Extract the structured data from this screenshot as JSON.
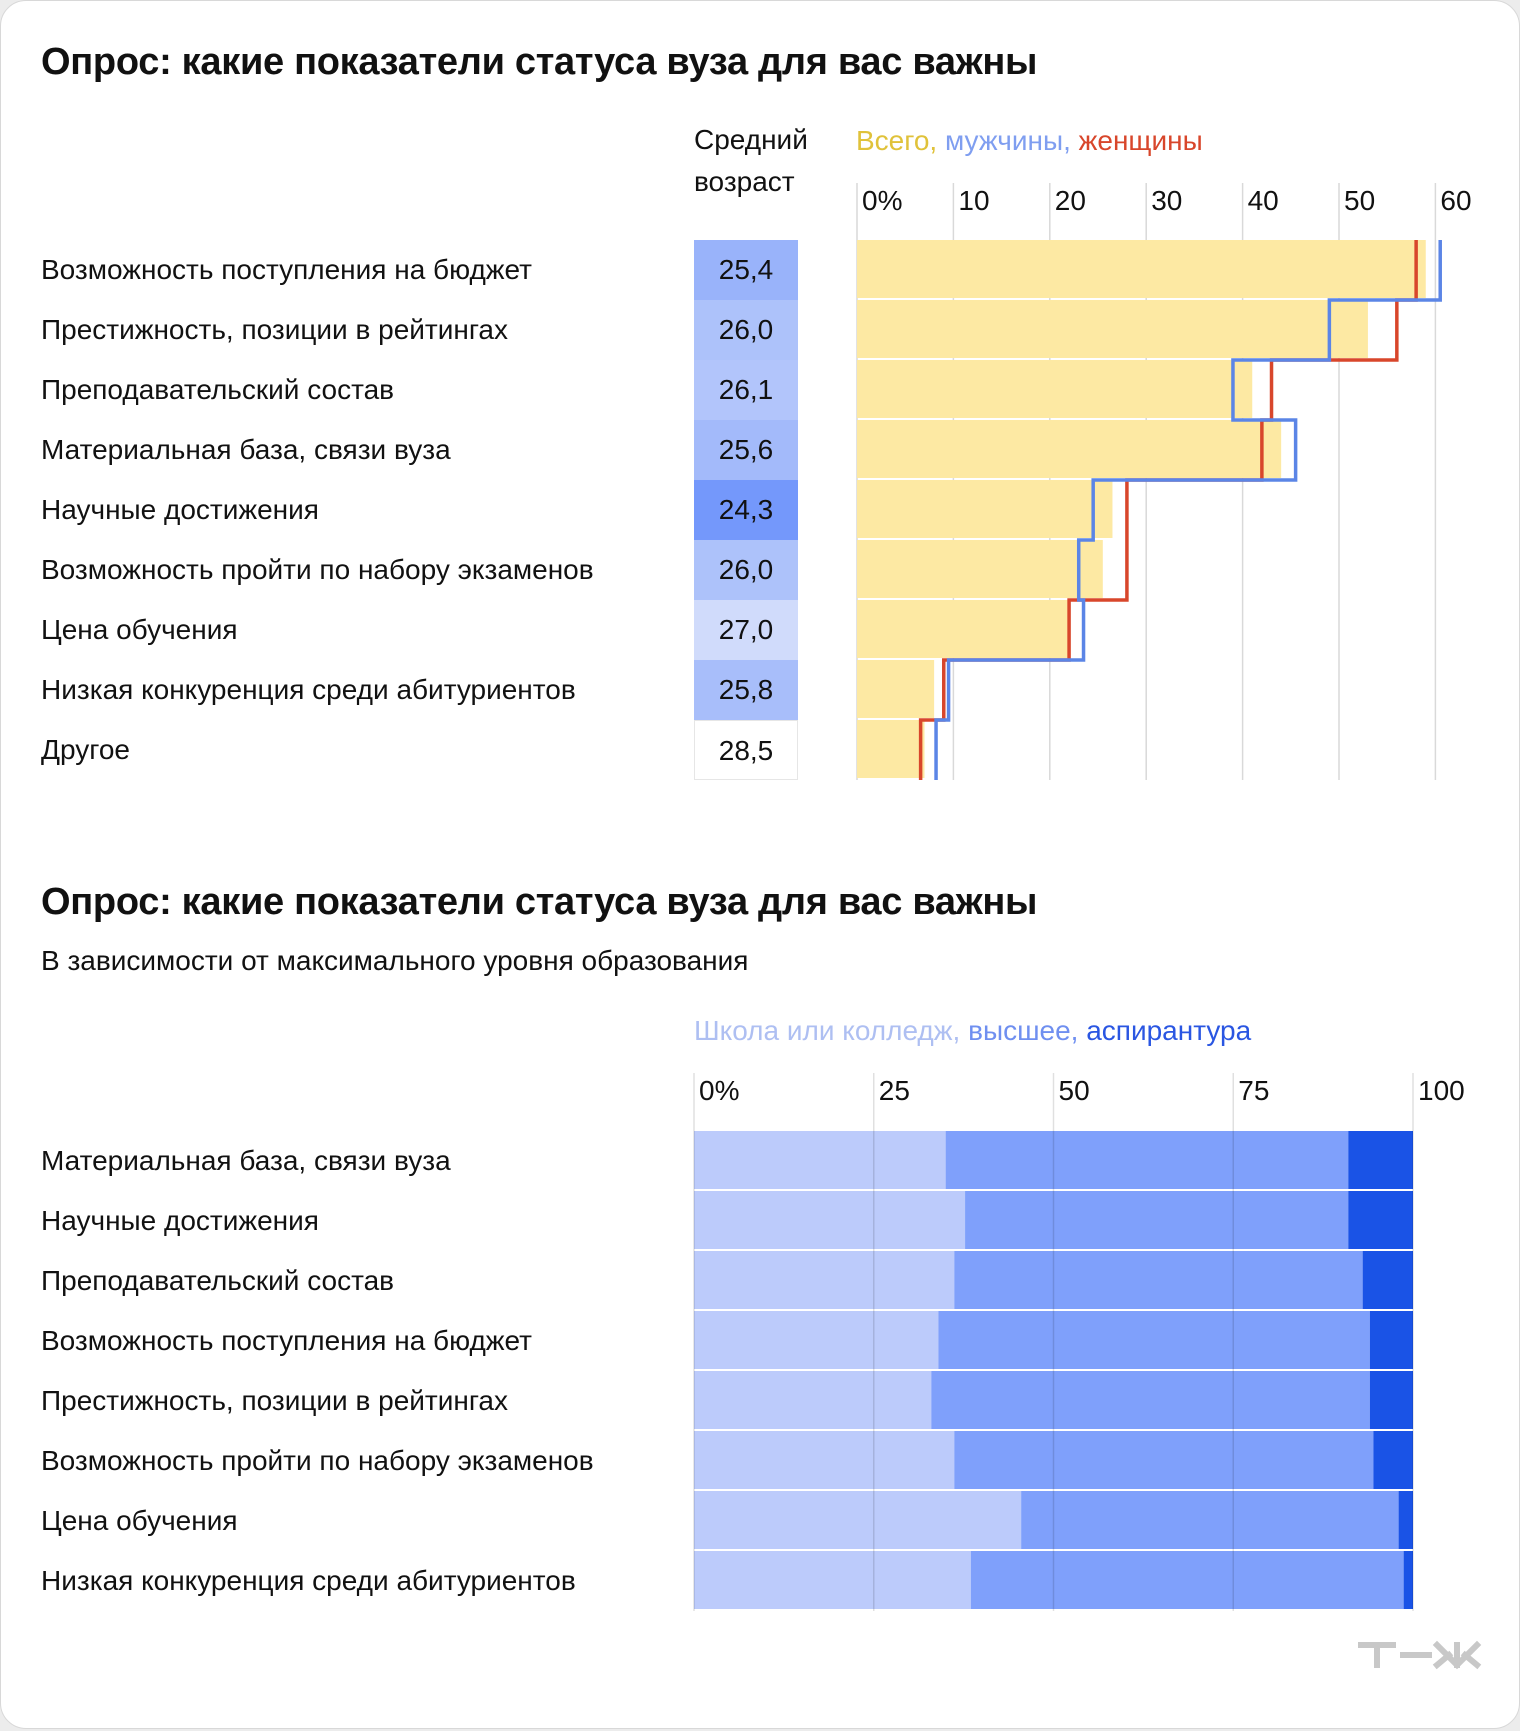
{
  "chart_data": [
    {
      "type": "bar",
      "title": "Опрос: какие показатели статуса вуза для вас важны",
      "age_header_line1": "Средний",
      "age_header_line2": "возраст",
      "legend": [
        {
          "label": "Всего,",
          "color": "#e0c23a"
        },
        {
          "label": "мужчины,",
          "color": "#7f9ef0"
        },
        {
          "label": "женщины",
          "color": "#d8462b"
        }
      ],
      "x_ticks": [
        "0%",
        "10",
        "20",
        "30",
        "40",
        "50",
        "60"
      ],
      "x_tick_values": [
        0,
        10,
        20,
        30,
        40,
        50,
        60
      ],
      "xlim": [
        0,
        60
      ],
      "categories": [
        "Возможность поступления на бюджет",
        "Престижность, позиции в рейтингах",
        "Преподавательский состав",
        "Материальная база, связи вуза",
        "Научные достижения",
        "Возможность пройти по набору экзаменов",
        "Цена обучения",
        "Низкая конкуренция среди абитуриентов",
        "Другое"
      ],
      "average_age": [
        "25,4",
        "26,0",
        "26,1",
        "25,6",
        "24,3",
        "26,0",
        "27,0",
        "25,8",
        "28,5"
      ],
      "average_age_values": [
        25.4,
        26.0,
        26.1,
        25.6,
        24.3,
        26.0,
        27.0,
        25.8,
        28.5
      ],
      "series": [
        {
          "name": "Всего",
          "color": "#fde9a3",
          "values": [
            59,
            53,
            41,
            44,
            26.5,
            25.5,
            22,
            8,
            7
          ]
        },
        {
          "name": "мужчины",
          "color": "#5b85e6",
          "values": [
            60.5,
            49,
            39,
            45.5,
            24.5,
            23,
            23.5,
            9.5,
            8.2
          ]
        },
        {
          "name": "женщины",
          "color": "#d8462b",
          "values": [
            58,
            56,
            43,
            42,
            28,
            28,
            22,
            9,
            6.6
          ]
        }
      ]
    },
    {
      "type": "bar",
      "title": "Опрос: какие показатели статуса вуза для вас важны",
      "subtitle": "В зависимости от максимального уровня образования",
      "legend": [
        {
          "label": "Школа или колледж,",
          "color": "#aebff2"
        },
        {
          "label": "высшее,",
          "color": "#6f8ff0"
        },
        {
          "label": "аспирантура",
          "color": "#2a56e2"
        }
      ],
      "x_ticks": [
        "0%",
        "25",
        "50",
        "75",
        "100"
      ],
      "x_tick_values": [
        0,
        25,
        50,
        75,
        100
      ],
      "xlim": [
        0,
        100
      ],
      "categories": [
        "Материальная база, связи вуза",
        "Научные достижения",
        "Преподавательский состав",
        "Возможность поступления на бюджет",
        "Престижность, позиции в рейтингах",
        "Возможность пройти по набору экзаменов",
        "Цена обучения",
        "Низкая конкуренция среди абитуриентов"
      ],
      "series": [
        {
          "name": "Школа или колледж",
          "color": "#bccbfb",
          "values": [
            35,
            37.7,
            36.2,
            34,
            33,
            36.2,
            45.5,
            38.5
          ]
        },
        {
          "name": "высшее",
          "color": "#7fa0fb",
          "values": [
            56,
            53.3,
            56.8,
            60,
            61,
            58.3,
            52.5,
            60.2
          ]
        },
        {
          "name": "аспирантура",
          "color": "#1a53e6",
          "values": [
            9,
            9,
            7,
            6,
            6,
            5.5,
            2,
            1.3
          ]
        }
      ]
    }
  ],
  "logo": "т—ж"
}
